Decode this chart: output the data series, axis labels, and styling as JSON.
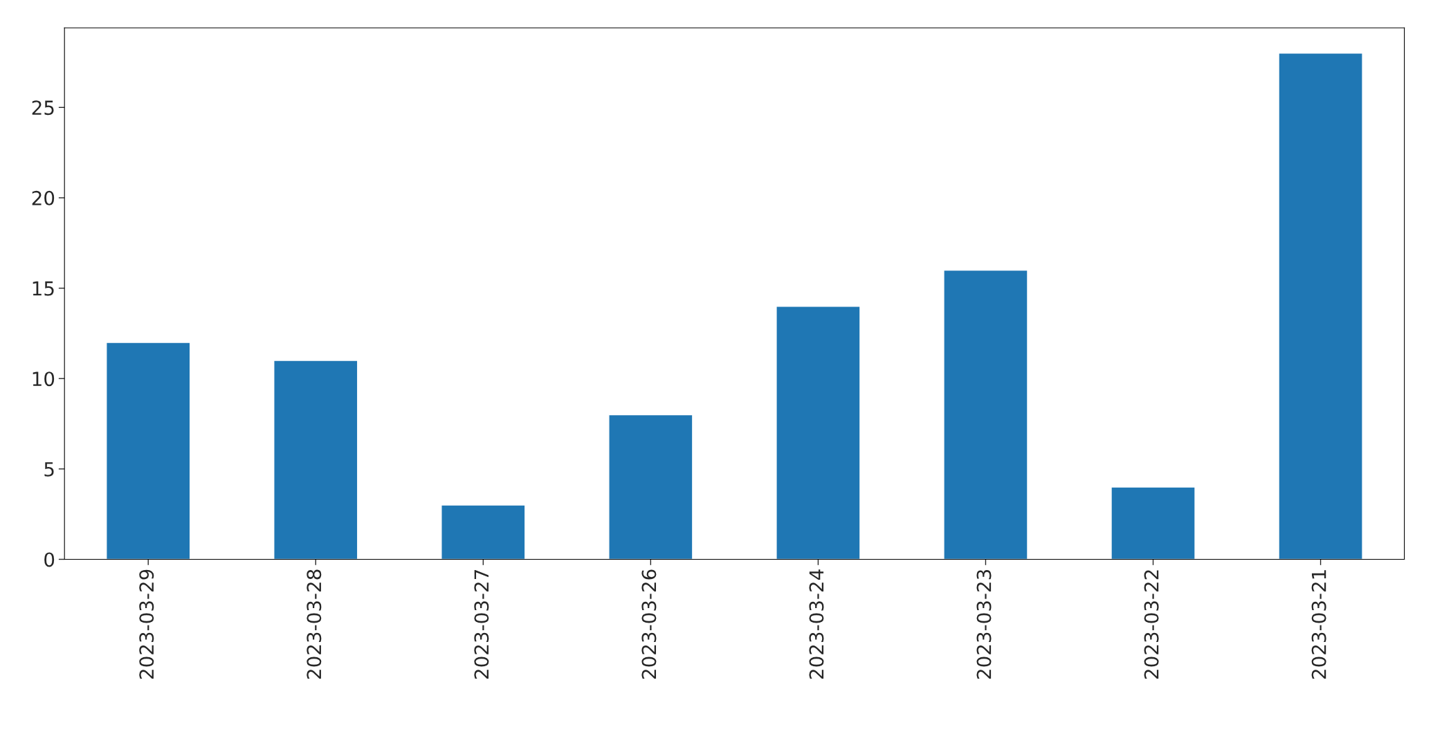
{
  "chart_data": {
    "type": "bar",
    "categories": [
      "2023-03-29",
      "2023-03-28",
      "2023-03-27",
      "2023-03-26",
      "2023-03-24",
      "2023-03-23",
      "2023-03-22",
      "2023-03-21"
    ],
    "values": [
      12,
      11,
      3,
      8,
      14,
      16,
      4,
      28
    ],
    "color": "#1f77b4",
    "ylim": [
      0,
      29.4
    ],
    "yticks": [
      0,
      5,
      10,
      15,
      20,
      25
    ],
    "grid": false,
    "legend": false
  }
}
